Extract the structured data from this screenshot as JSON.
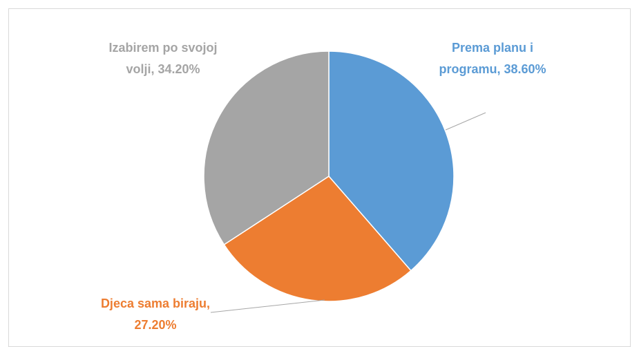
{
  "chart_data": {
    "type": "pie",
    "categories": [
      "Prema planu i programu",
      "Djeca sama biraju",
      "Izabirem po svojoj volji"
    ],
    "values": [
      38.6,
      27.2,
      34.2
    ],
    "value_labels": [
      "38.60%",
      "27.20%",
      "34.20%"
    ],
    "label_separator": ", ",
    "colors": [
      "#5b9bd5",
      "#ed7d31",
      "#a5a5a5"
    ]
  }
}
